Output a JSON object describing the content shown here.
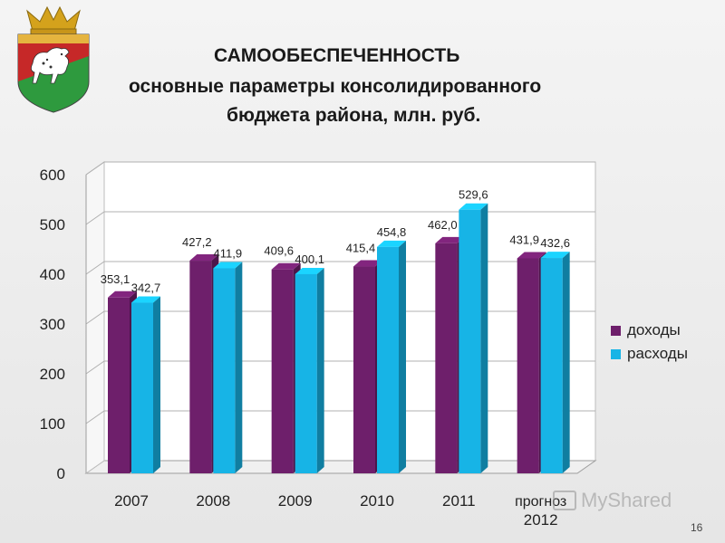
{
  "header": {
    "title": "САМООБЕСПЕЧЕННОСТЬ",
    "subtitle_line1": "основные параметры консолидированного",
    "subtitle_line2": "бюджета района, млн. руб."
  },
  "chart_data": {
    "type": "bar",
    "title": "",
    "xlabel": "",
    "ylabel": "",
    "ylim": [
      0,
      600
    ],
    "yticks": [
      "0",
      "100",
      "200",
      "300",
      "400",
      "500",
      "600"
    ],
    "categories": [
      "2007",
      "2008",
      "2009",
      "2010",
      "2011",
      "прогноз 2012"
    ],
    "series": [
      {
        "name": "доходы",
        "color": "#6e1f6b",
        "values": [
          353.1,
          427.2,
          409.6,
          415.4,
          462.0,
          431.9
        ],
        "labels": [
          "353,1",
          "427,2",
          "409,6",
          "415,4",
          "462,0",
          "431,9"
        ]
      },
      {
        "name": "расходы",
        "color": "#17b4e6",
        "values": [
          342.7,
          411.9,
          400.1,
          454.8,
          529.6,
          432.6
        ],
        "labels": [
          "342,7",
          "411,9",
          "400,1",
          "454,8",
          "529,6",
          "432,6"
        ]
      }
    ],
    "grid": true,
    "legend_position": "right"
  },
  "footer": {
    "page_number": "16",
    "watermark": "MyShared"
  },
  "crest": {
    "icon": "district-coat-of-arms-icon",
    "colors": {
      "crown": "#d4a21c",
      "field": "#c62828",
      "green": "#2e9a3e",
      "horse": "#ffffff"
    }
  }
}
